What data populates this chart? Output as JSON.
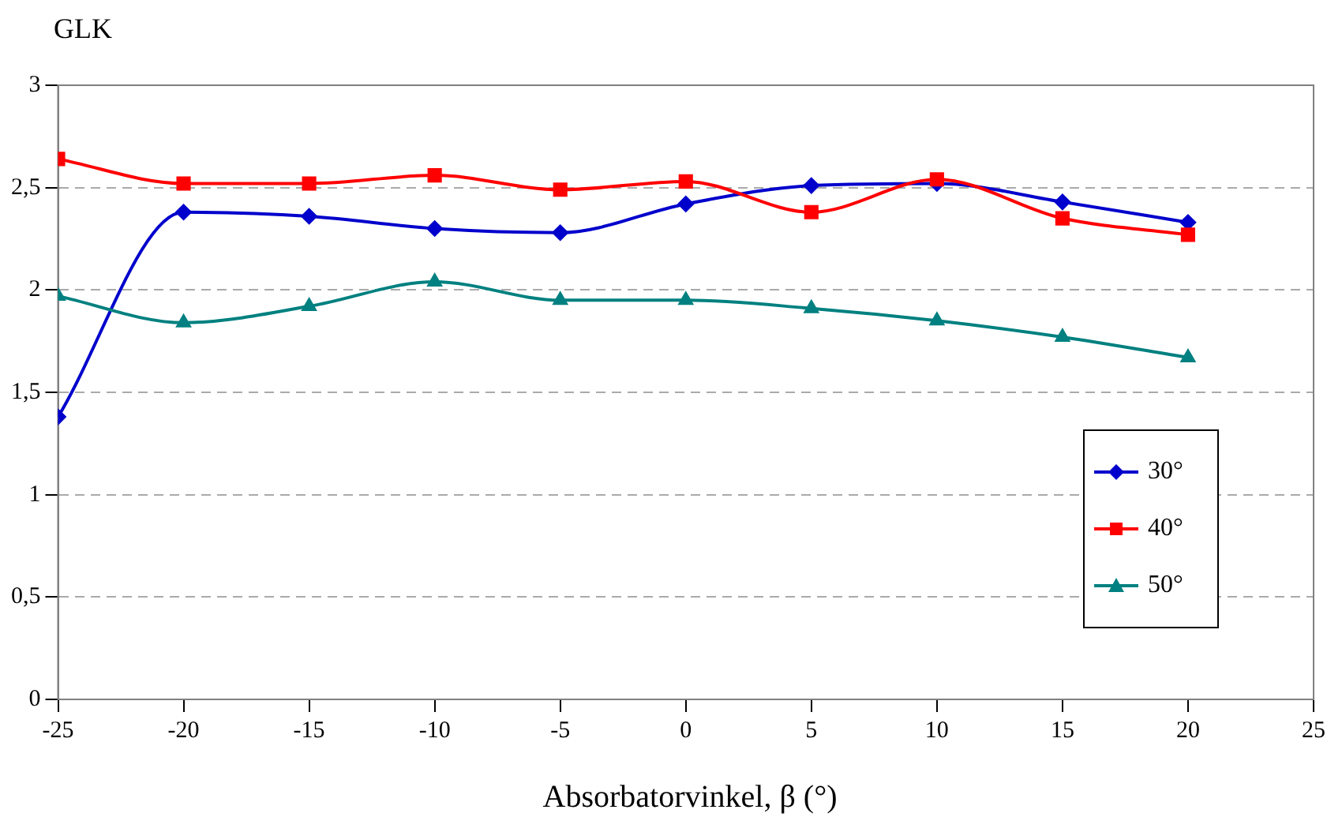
{
  "chart_data": {
    "type": "line",
    "xlabel": "Absorbatorvinkel, β (°)",
    "ylabel": "GLK",
    "x": [
      -25,
      -20,
      -15,
      -10,
      -5,
      0,
      5,
      10,
      15,
      20
    ],
    "xlim": [
      -25,
      25
    ],
    "xticks": [
      -25,
      -20,
      -15,
      -10,
      -5,
      0,
      5,
      10,
      15,
      20,
      25
    ],
    "ylim": [
      0,
      3
    ],
    "yticks": [
      0,
      {
        "value": 0.5,
        "label": "0,5"
      },
      1,
      {
        "value": 1.5,
        "label": "1,5"
      },
      2,
      {
        "value": 2.5,
        "label": "2,5"
      },
      3
    ],
    "grid": "y",
    "legend": "right",
    "line_style": "solid",
    "series": [
      {
        "name": "30°",
        "color": "#0000cc",
        "marker": "diamond",
        "values": [
          1.38,
          2.38,
          2.36,
          2.3,
          2.28,
          2.42,
          2.51,
          2.52,
          2.43,
          2.33
        ]
      },
      {
        "name": "40°",
        "color": "#ff0000",
        "marker": "square",
        "values": [
          2.64,
          2.52,
          2.52,
          2.56,
          2.49,
          2.53,
          2.38,
          2.54,
          2.35,
          2.27
        ]
      },
      {
        "name": "50°",
        "color": "#008080",
        "marker": "triangle",
        "values": [
          1.97,
          1.84,
          1.92,
          2.04,
          1.95,
          1.95,
          1.91,
          1.85,
          1.77,
          1.67
        ]
      }
    ]
  }
}
